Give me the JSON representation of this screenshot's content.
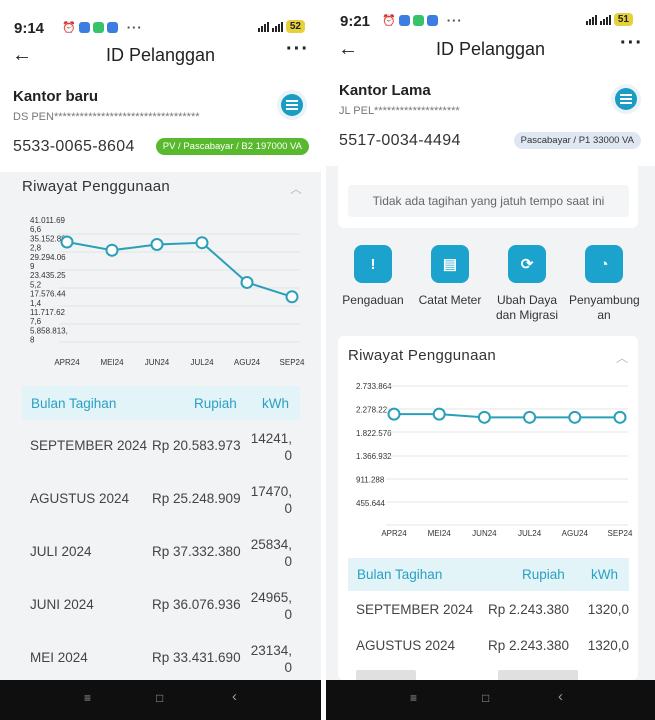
{
  "left": {
    "status": {
      "time": "9:14",
      "battery": "52"
    },
    "header": {
      "back_icon": "back-arrow-icon",
      "title": "ID Pelanggan",
      "more_icon": "more-icon"
    },
    "customer": {
      "name": "Kantor baru",
      "address": "DS PEN**********************************",
      "number": "5533-0065-8604",
      "tariff": "PV / Pascabayar / B2 197000 VA"
    },
    "usage": {
      "title": "Riwayat Penggunaan",
      "chart_data": {
        "type": "line",
        "y_tick_labels": [
          "41.011.69",
          "6,6",
          "35.152.88",
          "2,8",
          "29.294.06",
          "9",
          "23.435.25",
          "5,2",
          "17.576.44",
          "1,4",
          "11.717.62",
          "7,6",
          "5.858.813,",
          "8"
        ],
        "categories": [
          "APR24",
          "MEI24",
          "JUN24",
          "JUL24",
          "AGU24",
          "SEP24"
        ],
        "values": [
          36300,
          34000,
          35600,
          36100,
          25000,
          21000
        ],
        "ylim": [
          0,
          43000
        ],
        "color": "#2aa0b8"
      },
      "table": {
        "headers": {
          "month": "Bulan Tagihan",
          "amount": "Rupiah",
          "kwh": "kWh"
        },
        "rows": [
          {
            "month": "SEPTEMBER 2024",
            "amount": "Rp 20.583.973",
            "kwh_1": "14241,",
            "kwh_2": "0"
          },
          {
            "month": "AGUSTUS 2024",
            "amount": "Rp 25.248.909",
            "kwh_1": "17470,",
            "kwh_2": "0"
          },
          {
            "month": "JULI 2024",
            "amount": "Rp 37.332.380",
            "kwh_1": "25834,",
            "kwh_2": "0"
          },
          {
            "month": "JUNI 2024",
            "amount": "Rp 36.076.936",
            "kwh_1": "24965,",
            "kwh_2": "0"
          },
          {
            "month": "MEI 2024",
            "amount": "Rp 33.431.690",
            "kwh_1": "23134,",
            "kwh_2": "0"
          }
        ]
      }
    },
    "nav": {
      "menu": "≡",
      "home": "□",
      "back": "‹"
    }
  },
  "right": {
    "status": {
      "time": "9:21",
      "battery": "51"
    },
    "header": {
      "back_icon": "back-arrow-icon",
      "title": "ID Pelanggan",
      "more_icon": "more-icon"
    },
    "customer": {
      "name": "Kantor Lama",
      "address": "JL PEL********************",
      "number": "5517-0034-4494",
      "tariff": "Pascabayar / P1 33000 VA"
    },
    "bill": {
      "empty_text": "Tidak ada tagihan yang jatuh tempo saat ini"
    },
    "services": [
      {
        "label_1": "Pengaduan",
        "label_2": "",
        "icon": "complaint-icon"
      },
      {
        "label_1": "Catat Meter",
        "label_2": "",
        "icon": "meter-icon"
      },
      {
        "label_1": "Ubah Daya",
        "label_2": "dan Migrasi",
        "icon": "power-change-icon"
      },
      {
        "label_1": "Penyambung",
        "label_2": "an",
        "icon": "connection-icon"
      }
    ],
    "usage": {
      "title": "Riwayat Penggunaan",
      "chart_data": {
        "type": "line",
        "y_tick_labels": [
          "2.733.864",
          "2.278.22",
          "1.822.576",
          "1.366.932",
          "911.288",
          "455.644"
        ],
        "categories": [
          "APR24",
          "MEI24",
          "JUN24",
          "JUL24",
          "AGU24",
          "SEP24"
        ],
        "values": [
          2310000,
          2310000,
          2243380,
          2243380,
          2243380,
          2243380
        ],
        "ylim": [
          0,
          3000000
        ],
        "color": "#2aa0b8"
      },
      "table": {
        "headers": {
          "month": "Bulan Tagihan",
          "amount": "Rupiah",
          "kwh": "kWh"
        },
        "rows": [
          {
            "month": "SEPTEMBER 2024",
            "amount": "Rp 2.243.380",
            "kwh": "1320,0"
          },
          {
            "month": "AGUSTUS 2024",
            "amount": "Rp 2.243.380",
            "kwh": "1320,0"
          }
        ]
      }
    },
    "nav": {
      "menu": "≡",
      "home": "□",
      "back": "‹"
    }
  }
}
